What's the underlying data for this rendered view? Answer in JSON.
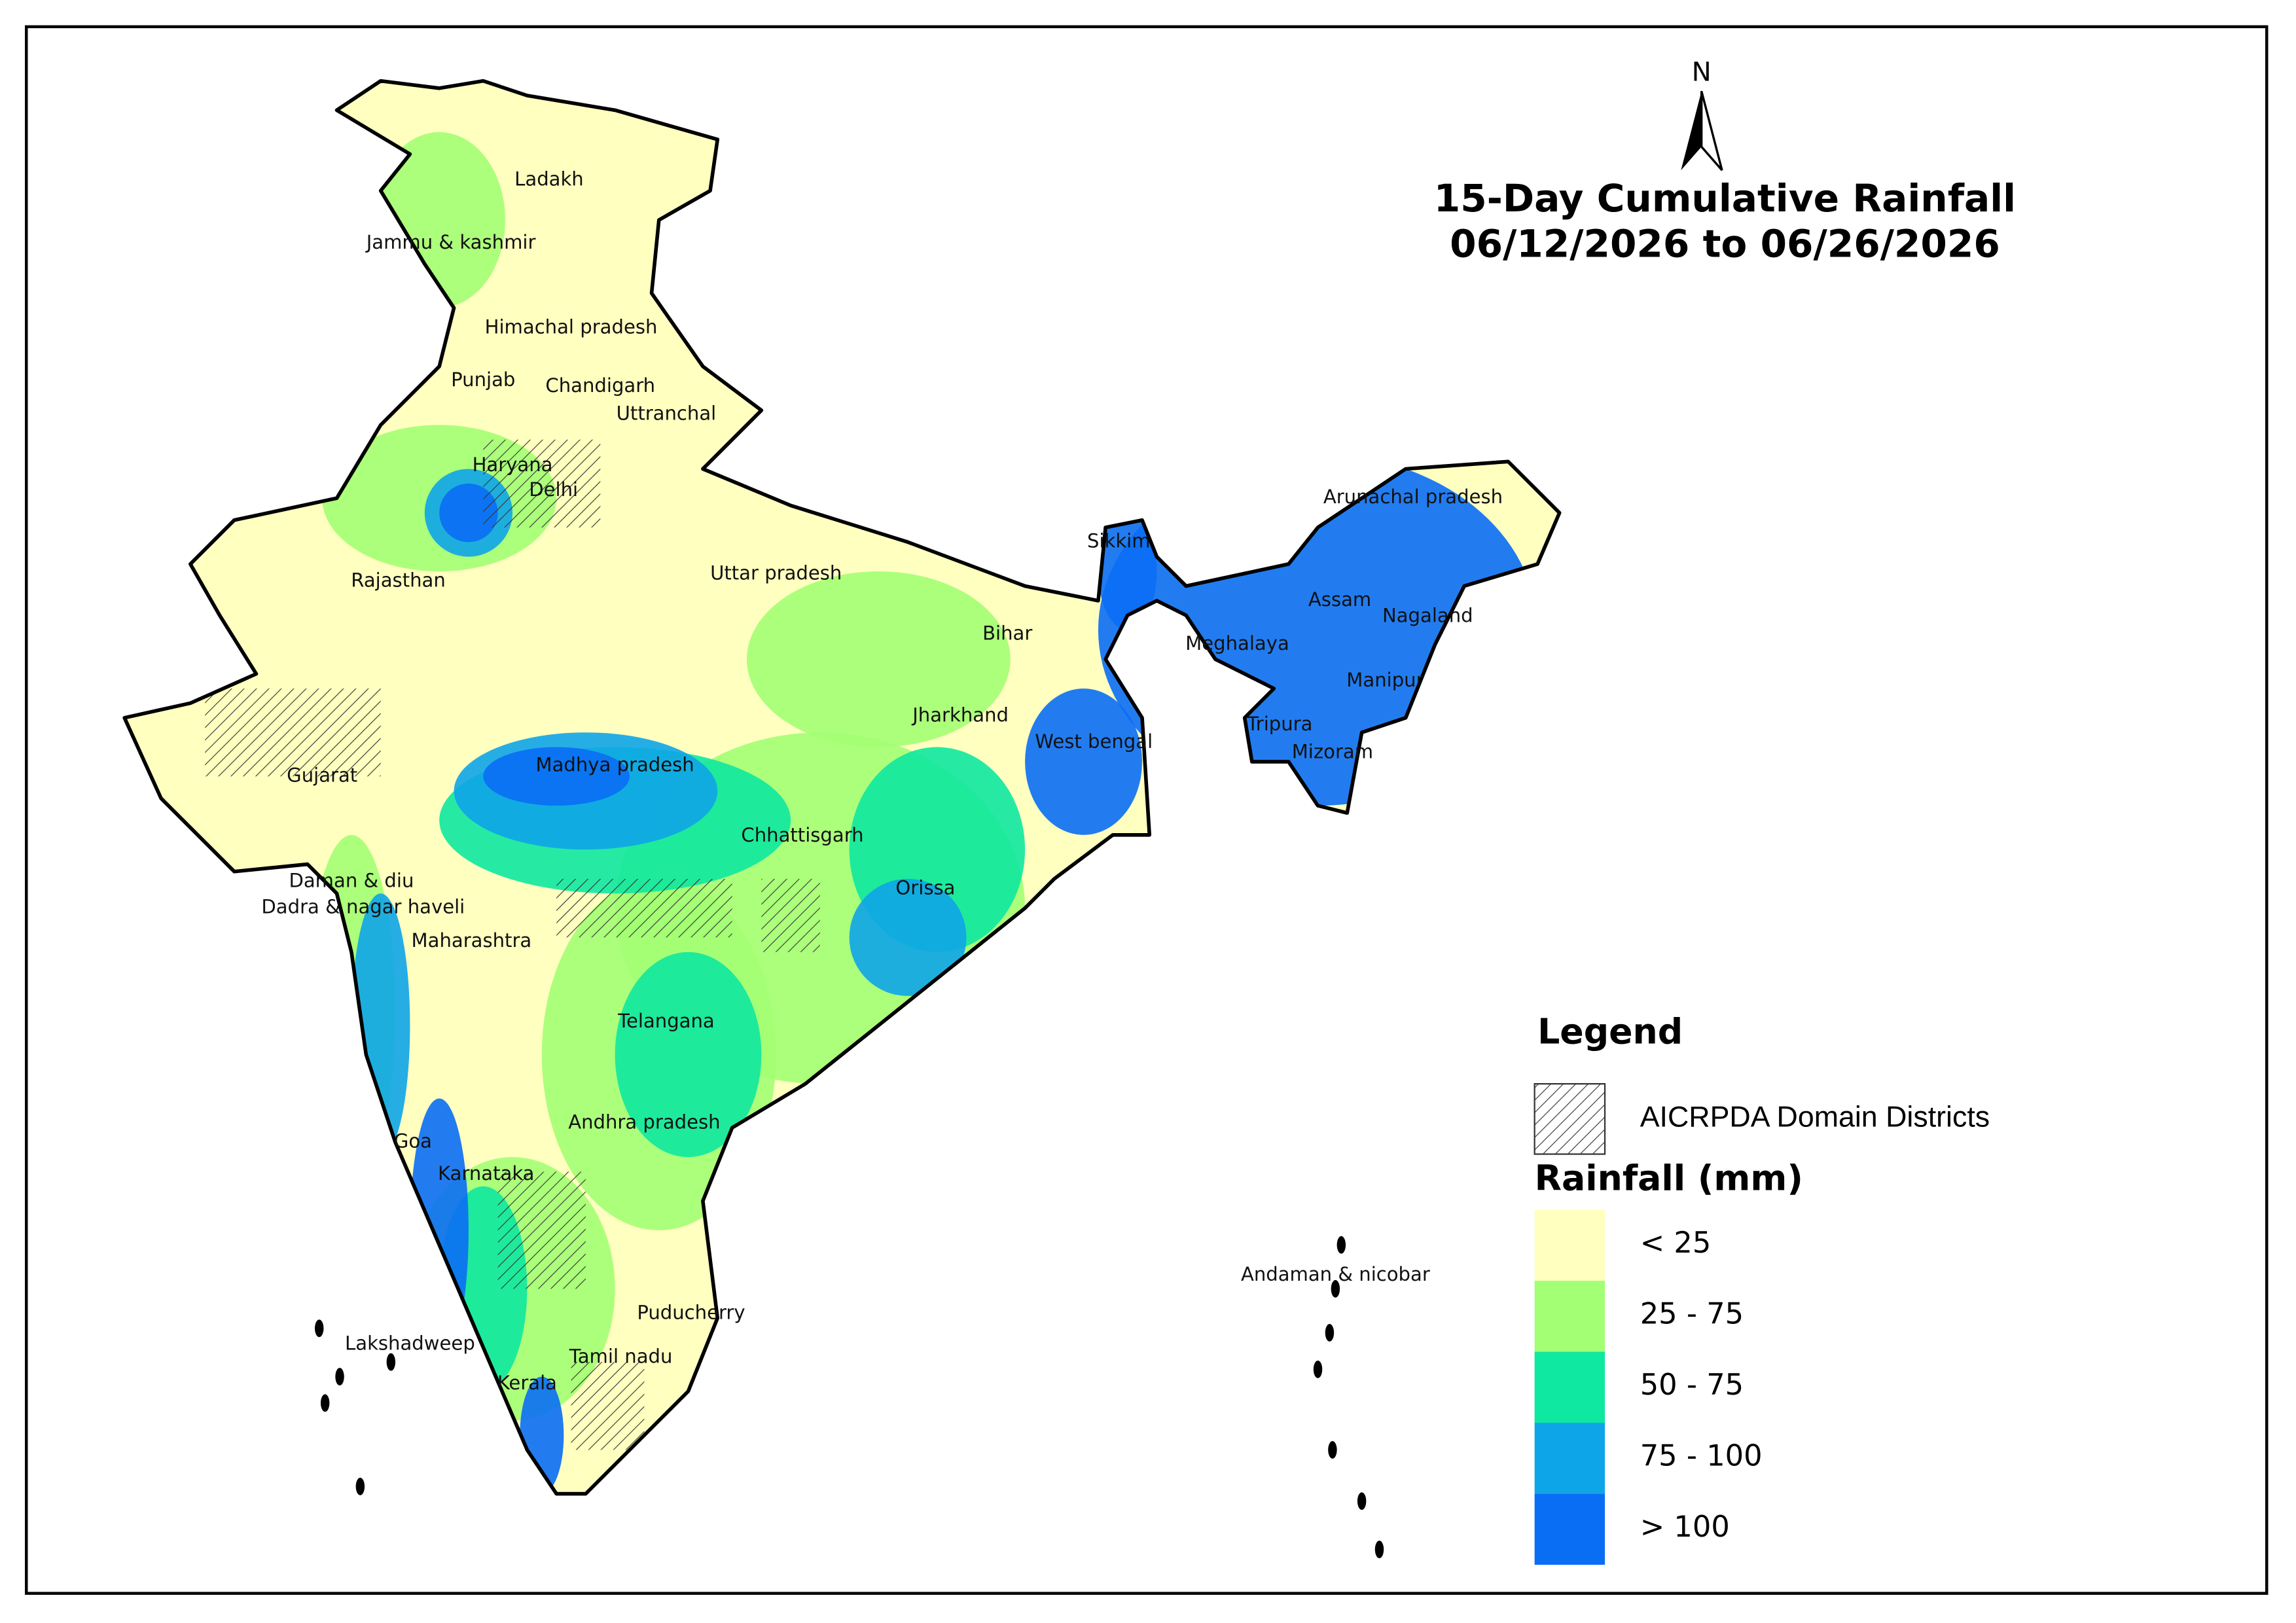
{
  "title": {
    "line1": "15-Day Cumulative Rainfall",
    "line2": "06/12/2026 to 06/26/2026"
  },
  "north_arrow": "N",
  "legend": {
    "title": "Legend",
    "hatch_label": "AICRPDA Domain Districts",
    "rainfall_title": "Rainfall (mm)",
    "classes": [
      {
        "label": "< 25",
        "color": "#ffffc0"
      },
      {
        "label": "25 - 75",
        "color": "#a3ff73"
      },
      {
        "label": "50 - 75",
        "color": "#0ee8a0"
      },
      {
        "label": "75 - 100",
        "color": "#0ea5e8"
      },
      {
        "label": "> 100",
        "color": "#0a6ef5"
      }
    ]
  },
  "regions": [
    "Ladakh",
    "Jammu & kashmir",
    "Himachal pradesh",
    "Punjab",
    "Chandigarh",
    "Uttranchal",
    "Haryana",
    "Delhi",
    "Rajasthan",
    "Uttar pradesh",
    "Bihar",
    "Sikkim",
    "Arunachal pradesh",
    "Assam",
    "Meghalaya",
    "Nagaland",
    "Manipur",
    "Tripura",
    "Mizoram",
    "Jharkhand",
    "West bengal",
    "Gujarat",
    "Madhya pradesh",
    "Chhattisgarh",
    "Orissa",
    "Daman & diu",
    "Dadra & nagar haveli",
    "Maharashtra",
    "Telangana",
    "Goa",
    "Andhra pradesh",
    "Karnataka",
    "Puducherry",
    "Andaman & nicobar",
    "Lakshadweep",
    "Tamil nadu",
    "Kerala"
  ]
}
